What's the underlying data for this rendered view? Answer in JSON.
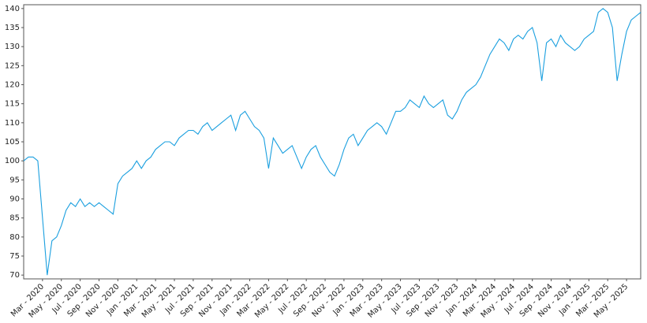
{
  "chart_data": {
    "type": "line",
    "categories": [
      null,
      null,
      null,
      null,
      "Mar - 2020",
      null,
      null,
      null,
      "May - 2020",
      null,
      null,
      null,
      "Jul - 2020",
      null,
      null,
      null,
      "Sep - 2020",
      null,
      null,
      null,
      "Nov - 2020",
      null,
      null,
      null,
      "Jan - 2021",
      null,
      null,
      null,
      "Mar - 2021",
      null,
      null,
      null,
      "May - 2021",
      null,
      null,
      null,
      "Jul - 2021",
      null,
      null,
      null,
      "Sep - 2021",
      null,
      null,
      null,
      "Nov - 2021",
      null,
      null,
      null,
      "Jan - 2022",
      null,
      null,
      null,
      "Mar - 2022",
      null,
      null,
      null,
      "May - 2022",
      null,
      null,
      null,
      "Jul - 2022",
      null,
      null,
      null,
      "Sep - 2022",
      null,
      null,
      null,
      "Nov - 2022",
      null,
      null,
      null,
      "Jan - 2023",
      null,
      null,
      null,
      "Mar - 2023",
      null,
      null,
      null,
      "May - 2023",
      null,
      null,
      null,
      "Jul - 2023",
      null,
      null,
      null,
      "Sep - 2023",
      null,
      null,
      null,
      "Nov - 2023",
      null,
      null,
      null,
      "Jan - 2024",
      null,
      null,
      null,
      "Mar - 2024",
      null,
      null,
      null,
      "May - 2024",
      null,
      null,
      null,
      "Jul - 2024",
      null,
      null,
      null,
      "Sep - 2024",
      null,
      null,
      null,
      "Nov - 2024",
      null,
      null,
      null,
      "Jan - 2025",
      null,
      null,
      null,
      "Mar - 2025",
      null,
      null,
      null,
      "May - 2025",
      null,
      null,
      null
    ],
    "values": [
      100,
      101,
      101,
      100,
      85,
      70,
      79,
      80,
      83,
      87,
      89,
      88,
      90,
      88,
      89,
      88,
      89,
      88,
      87,
      86,
      94,
      96,
      97,
      98,
      100,
      98,
      100,
      101,
      103,
      104,
      105,
      105,
      104,
      106,
      107,
      108,
      108,
      107,
      109,
      110,
      108,
      109,
      110,
      111,
      112,
      108,
      112,
      113,
      111,
      109,
      108,
      106,
      98,
      106,
      104,
      102,
      103,
      104,
      101,
      98,
      101,
      103,
      104,
      101,
      99,
      97,
      96,
      99,
      103,
      106,
      107,
      104,
      106,
      108,
      109,
      110,
      109,
      107,
      110,
      113,
      113,
      114,
      116,
      115,
      114,
      117,
      115,
      114,
      115,
      116,
      112,
      111,
      113,
      116,
      118,
      119,
      120,
      122,
      125,
      128,
      130,
      132,
      131,
      129,
      132,
      133,
      132,
      134,
      135,
      131,
      121,
      131,
      132,
      130,
      133,
      131,
      130,
      129,
      130,
      132,
      133,
      134,
      139,
      140,
      139,
      135,
      121,
      128,
      134,
      137,
      138,
      139
    ],
    "color": "#1a9fdf",
    "ylim": [
      69,
      141
    ],
    "yticks": [
      70,
      75,
      80,
      85,
      90,
      95,
      100,
      105,
      110,
      115,
      120,
      125,
      130,
      135,
      140
    ],
    "grid": false
  }
}
